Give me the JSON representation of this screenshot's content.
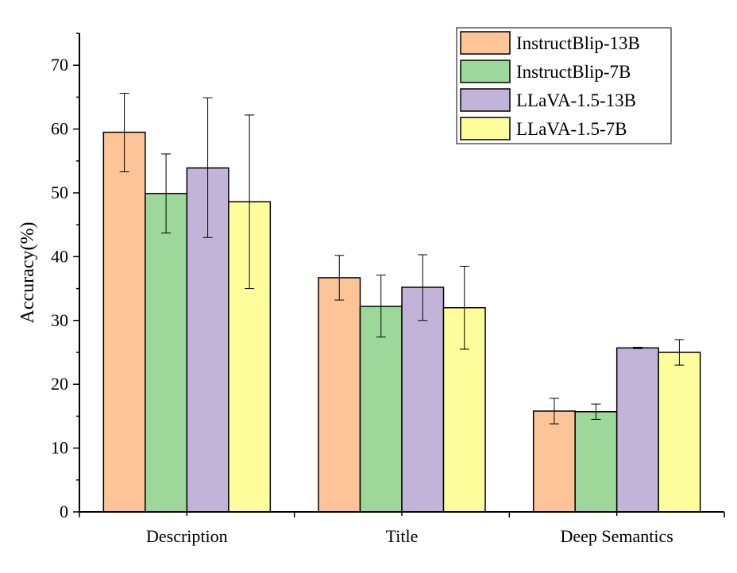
{
  "chart_data": {
    "type": "bar",
    "title": "",
    "xlabel": "",
    "ylabel": "Accuracy(%)",
    "ylim": [
      0,
      75
    ],
    "yticks": [
      0,
      10,
      20,
      30,
      40,
      50,
      60,
      70
    ],
    "categories": [
      "Description",
      "Title",
      "Deep Semantics"
    ],
    "legend_position": "top-right",
    "grid": false,
    "series": [
      {
        "name": "InstructBlip-13B",
        "color": "#fdc597",
        "values": [
          59.5,
          36.7,
          15.8
        ],
        "err_low": [
          53.3,
          33.2,
          13.8
        ],
        "err_high": [
          65.6,
          40.2,
          17.8
        ]
      },
      {
        "name": "InstructBlip-7B",
        "color": "#9dd89a",
        "values": [
          49.9,
          32.2,
          15.7
        ],
        "err_low": [
          43.7,
          27.4,
          14.5
        ],
        "err_high": [
          56.1,
          37.1,
          16.9
        ]
      },
      {
        "name": "LLaVA-1.5-13B",
        "color": "#c2b4d8",
        "values": [
          53.9,
          35.2,
          25.7
        ],
        "err_low": [
          43.0,
          30.0,
          25.6
        ],
        "err_high": [
          64.9,
          40.3,
          25.8
        ]
      },
      {
        "name": "LLaVA-1.5-7B",
        "color": "#fdfd9c",
        "values": [
          48.6,
          32.0,
          25.0
        ],
        "err_low": [
          35.0,
          25.5,
          23.0
        ],
        "err_high": [
          62.2,
          38.5,
          27.0
        ]
      }
    ]
  }
}
